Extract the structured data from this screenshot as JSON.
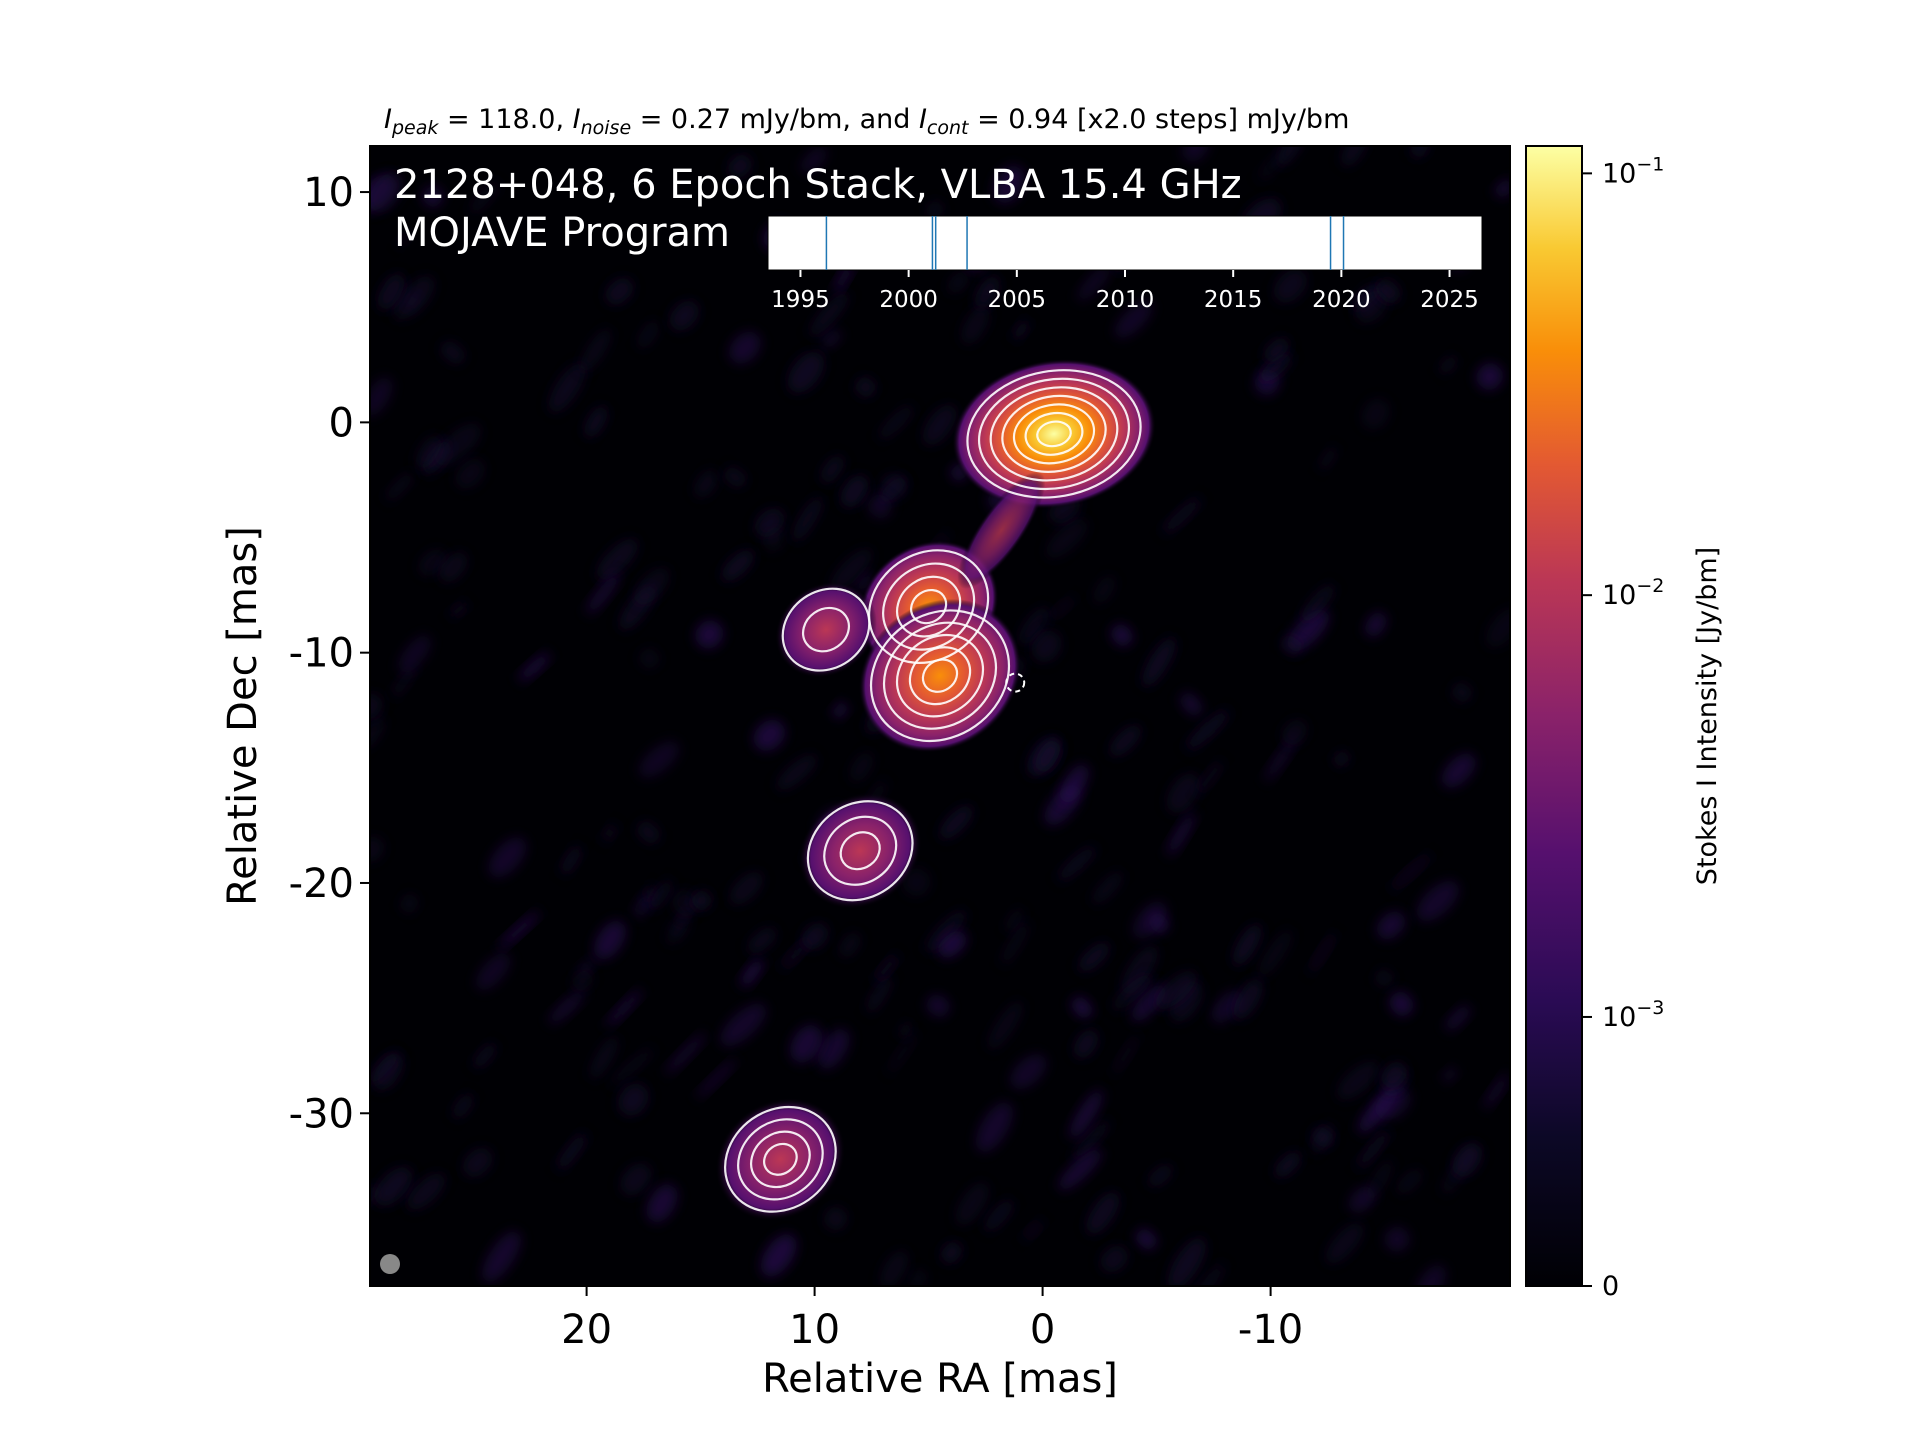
{
  "chart_data": {
    "type": "heatmap",
    "caption": {
      "I": "I",
      "peak_sub": "peak",
      "peak_text": " = 118.0, ",
      "noise_sub": "noise",
      "noise_text": " = 0.27 mJy/bm, and ",
      "cont_sub": "cont",
      "cont_text": " = 0.94 [x2.0 steps] mJy/bm"
    },
    "title_line1": "2128+048, 6 Epoch Stack, VLBA 15.4 GHz",
    "title_line2": "MOJAVE Program",
    "xlabel": "Relative RA [mas]",
    "ylabel": "Relative Dec [mas]",
    "xlim": [
      29.5,
      -20.5
    ],
    "ylim": [
      -37.5,
      12
    ],
    "x_ticks": [
      20,
      10,
      0,
      -10
    ],
    "x_tick_labels": [
      "20",
      "10",
      "0",
      "-10"
    ],
    "y_ticks": [
      10,
      0,
      -10,
      -20,
      -30
    ],
    "y_tick_labels": [
      "10",
      "0",
      "-10",
      "-20",
      "-30"
    ],
    "colorbar": {
      "label": "Stokes I Intensity [Jy/bm]",
      "scale": "log",
      "colormap": "inferno",
      "tick_values": [
        0,
        0.001,
        0.01,
        0.1
      ],
      "tick_labels": [
        {
          "base": "0",
          "exp": ""
        },
        {
          "base": "10",
          "exp": "−3"
        },
        {
          "base": "10",
          "exp": "−2"
        },
        {
          "base": "10",
          "exp": "−1"
        }
      ]
    },
    "epoch_timeline": {
      "xlim": [
        1993.5,
        2026.5
      ],
      "ticks": [
        1995,
        2000,
        2005,
        2010,
        2015,
        2020,
        2025
      ],
      "tick_labels": [
        "1995",
        "2000",
        "2005",
        "2010",
        "2015",
        "2020",
        "2025"
      ],
      "epochs": [
        1996.2,
        2001.1,
        2001.25,
        2002.7,
        2019.5,
        2020.1
      ],
      "epoch_color": "#1f77b4"
    },
    "components": [
      {
        "ra": -0.5,
        "dec": -0.5,
        "peak_jy": 0.118
      },
      {
        "ra": 5.0,
        "dec": -8.0,
        "peak_jy": 0.012
      },
      {
        "ra": 4.5,
        "dec": -11.0,
        "peak_jy": 0.03
      },
      {
        "ra": 8.0,
        "dec": -18.6,
        "peak_jy": 0.006
      },
      {
        "ra": 11.5,
        "dec": -32.0,
        "peak_jy": 0.008
      },
      {
        "ra": 9.5,
        "dec": -9.0,
        "peak_jy": 0.0025
      }
    ],
    "beam_color": "#888888",
    "background_color": "#000004",
    "contour_color": "#ffffff"
  }
}
